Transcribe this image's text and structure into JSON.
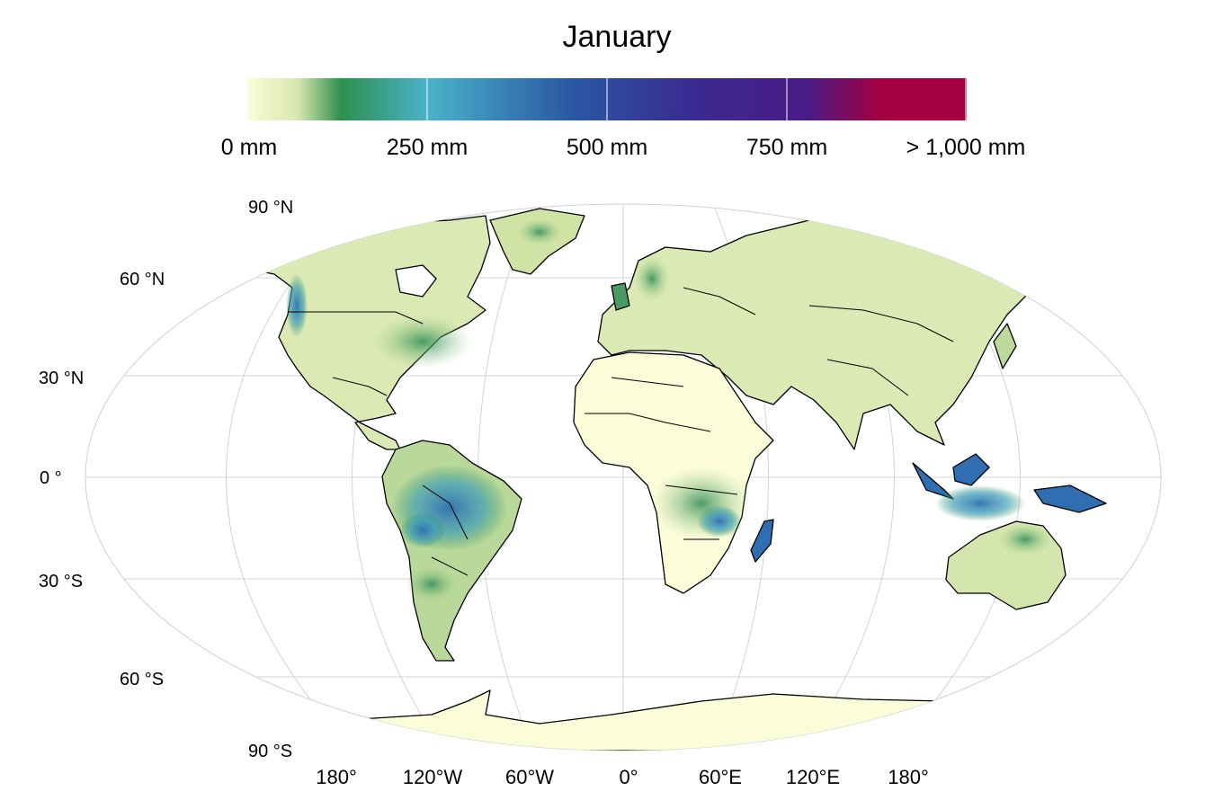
{
  "title": "January",
  "colorbar": {
    "ticks": [
      "0 mm",
      "250 mm",
      "500 mm",
      "750 mm",
      "> 1,000 mm"
    ],
    "stops": [
      "#fbfcd8",
      "#d8e7b0",
      "#2f8f4e",
      "#49b3c9",
      "#2a58a3",
      "#3a2a91",
      "#4a1b86",
      "#a5003f"
    ]
  },
  "lat_labels": [
    "90 °N",
    "60 °N",
    "30 °N",
    "0 °",
    "30 °S",
    "60 °S",
    "90 °S"
  ],
  "lon_labels": [
    "180°",
    "120°W",
    "60°W",
    "0°",
    "60°E",
    "120°E",
    "180°"
  ],
  "colors": {
    "land_dry": "#fbfcd8",
    "land_moist": "#c9e2a6",
    "wet": "#2e8b57",
    "very_wet": "#2f6fb1",
    "border": "#000000",
    "grid": "#d3d3d3"
  }
}
